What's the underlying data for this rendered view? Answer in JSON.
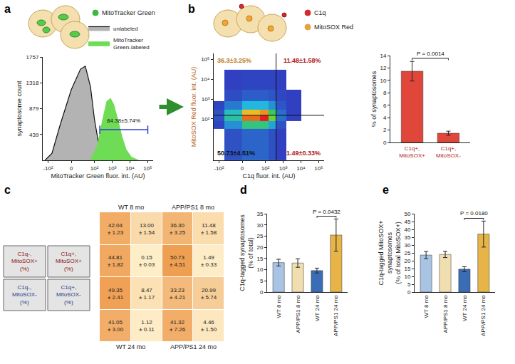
{
  "panel_labels": [
    "a",
    "b",
    "c",
    "d",
    "e"
  ],
  "chart_data": [
    {
      "type": "area",
      "labels": [
        {
          "text": "MitoTracker Green",
          "color": "#3cb83c"
        }
      ],
      "x_label": "MitoTracker Green fluor. int. (AU)",
      "y_label": "synaptosome count",
      "series": [
        {
          "name": "unlabeled",
          "color": "#b3b3b3",
          "x": [
            -150,
            -60,
            -20,
            0,
            15,
            30,
            60,
            100,
            180,
            300,
            600
          ],
          "values": [
            0,
            120,
            600,
            1200,
            1550,
            1600,
            1250,
            700,
            250,
            60,
            0
          ]
        },
        {
          "name": "MitoTracker\nGreen-labeled",
          "color": "#6fdc55",
          "x": [
            60,
            150,
            300,
            500,
            800,
            1200,
            2000,
            3500,
            6000,
            12000,
            30000
          ],
          "values": [
            0,
            250,
            700,
            1000,
            1050,
            950,
            700,
            400,
            180,
            50,
            0
          ]
        }
      ],
      "xlim": [
        -200,
        200000
      ],
      "xticks": [
        {
          "value": -100,
          "label": "-10²"
        },
        0,
        {
          "value": 100,
          "label": "10²"
        },
        {
          "value": 1000,
          "label": "10³"
        },
        {
          "value": 10000,
          "label": "10⁴"
        },
        {
          "value": 100000,
          "label": "10⁵"
        }
      ],
      "ylim": [
        0,
        1757
      ],
      "yticks": [
        439,
        879,
        1318,
        1757
      ],
      "legend": "top right",
      "gate": {
        "x": [
          200,
          100000
        ],
        "y": 520,
        "label": "84.38±5.74%"
      }
    },
    {
      "type": "density",
      "labels": [
        {
          "text": "C1q",
          "color": "#d42a2a"
        },
        {
          "text": "MitoSOX Red",
          "color": "#e8a23a"
        }
      ],
      "x_label": "C1q fluor. int. (AU)",
      "y_label": "MitoSOX Red fluor. int. (AU)",
      "x_edges": [
        -200,
        -50,
        0,
        50,
        150,
        400,
        1500,
        10000
      ],
      "y_edges": [
        -30,
        30,
        80,
        150,
        300,
        800,
        3000,
        30000
      ],
      "density": [
        [
          0,
          5,
          10,
          10,
          5,
          1,
          0
        ],
        [
          2,
          20,
          45,
          45,
          25,
          5,
          0
        ],
        [
          5,
          40,
          90,
          100,
          60,
          12,
          1
        ],
        [
          5,
          35,
          80,
          85,
          50,
          12,
          1
        ],
        [
          2,
          15,
          30,
          30,
          20,
          6,
          1
        ],
        [
          0,
          4,
          8,
          8,
          6,
          3,
          1
        ],
        [
          0,
          1,
          2,
          2,
          2,
          1,
          0
        ]
      ],
      "zlim": [
        0,
        100
      ],
      "xlim": [
        -200,
        200000
      ],
      "xticks": [
        {
          "value": -100,
          "label": "-10²"
        },
        0,
        {
          "value": 100,
          "label": "10²"
        },
        {
          "value": 1000,
          "label": "10³"
        },
        {
          "value": 10000,
          "label": "10⁴"
        },
        {
          "value": 100000,
          "label": "10⁵"
        }
      ],
      "ylim": [
        -30,
        200000
      ],
      "yticks": [
        {
          "value": 100,
          "label": "10²"
        },
        {
          "value": 1000,
          "label": "10³"
        },
        {
          "value": 10000,
          "label": "10⁴"
        },
        {
          "value": 100000,
          "label": "10⁵"
        }
      ],
      "gates": {
        "x": 400,
        "y": 150
      },
      "quadrant_labels": {
        "top_left": "36.3±3.25%",
        "top_right": "11.48±1.58%",
        "bottom_left": "50.73±4.51%",
        "bottom_right": "1.49±0.33%"
      }
    },
    {
      "type": "bar",
      "categories": [
        "C1q+,\nMitoSOX+",
        "C1q+,\nMitoSOX-"
      ],
      "values": [
        11.48,
        1.49
      ],
      "errors": [
        1.58,
        0.33
      ],
      "color": "#e0463a",
      "y_label": "% of synaptosomes",
      "ylim": [
        0,
        14
      ],
      "yticks": [
        0,
        2,
        4,
        6,
        8,
        10,
        12,
        14
      ],
      "significance": [
        {
          "pair": [
            "C1q+,\nMitoSOX+",
            "C1q+,\nMitoSOX-"
          ],
          "text": "P = 0.0014"
        }
      ]
    },
    {
      "type": "heatmap",
      "tick_labels": false,
      "groups": [
        "WT 8 mo",
        "APP/PS1 8 mo",
        "WT 24 mo",
        "APP/PS1 24 mo"
      ],
      "key": [
        [
          "C1q-,\nMitoSOX+\n(%)",
          "C1q+,\nMitoSOX+\n(%)"
        ],
        [
          "C1q-,\nMitoSOX-\n(%)",
          "C1q+,\nMitoSOX-\n(%)"
        ]
      ],
      "cells": [
        [
          42.04,
          13.0,
          36.3,
          11.48
        ],
        [
          44.81,
          0.15,
          50.73,
          1.49
        ],
        [
          49.35,
          8.47,
          33.23,
          20.99
        ],
        [
          41.05,
          1.12,
          41.32,
          4.46
        ]
      ],
      "value_labels": [
        [
          "42.04\n± 1.23",
          "13.00\n± 1.54",
          "36.30\n± 3.25",
          "11.48\n± 1.58"
        ],
        [
          "44.81\n± 1.82",
          "0.15\n± 0.03",
          "50.73\n± 4.51",
          "1.49\n± 0.33"
        ],
        [
          "49.35\n± 2.41",
          "8.47\n± 1.17",
          "33.23\n± 4.21",
          "20.99\n± 5.74"
        ],
        [
          "41.05\n± 3.00",
          "1.12\n± 0.11",
          "41.32\n± 7.26",
          "4.46\n± 1.50"
        ]
      ],
      "zlim": [
        0,
        55
      ]
    },
    {
      "type": "bar",
      "categories": [
        "WT 8 mo",
        "APP/PS1 8 mo",
        "WT 24 mo",
        "APP/PS1 24 mo"
      ],
      "values": [
        13.15,
        12.97,
        9.59,
        25.45
      ],
      "errors": [
        1.5,
        1.9,
        1.1,
        7.2
      ],
      "colors": [
        "#a9c4e2",
        "#f0ddb0",
        "#3b6db6",
        "#e7b447"
      ],
      "y_label": "C1q-tagged synaptosomes\n(% of total)",
      "ylim": [
        0,
        35
      ],
      "yticks": [
        0,
        5,
        10,
        15,
        20,
        25,
        30,
        35
      ],
      "significance": [
        {
          "pair": [
            "WT 24 mo",
            "APP/PS1 24 mo"
          ],
          "text": "P = 0.0432"
        }
      ]
    },
    {
      "type": "bar",
      "categories": [
        "WT 8 mo",
        "APP/PS1 8 mo",
        "WT 24 mo",
        "APP/PS1 24 mo"
      ],
      "values": [
        23.6,
        24.0,
        14.6,
        37.0
      ],
      "errors": [
        2.3,
        2.0,
        1.6,
        8.3
      ],
      "colors": [
        "#a9c4e2",
        "#f0ddb0",
        "#3b6db6",
        "#e7b447"
      ],
      "y_label": "C1q-tagged MitoSOX+\nsynaptosomes\n(% of total MitoSOX+)",
      "ylim": [
        0,
        50
      ],
      "yticks": [
        0,
        5,
        10,
        15,
        20,
        25,
        30,
        35,
        40,
        45,
        50
      ],
      "significance": [
        {
          "pair": [
            "WT 24 mo",
            "APP/PS1 24 mo"
          ],
          "text": "P = 0.0180"
        }
      ]
    }
  ]
}
